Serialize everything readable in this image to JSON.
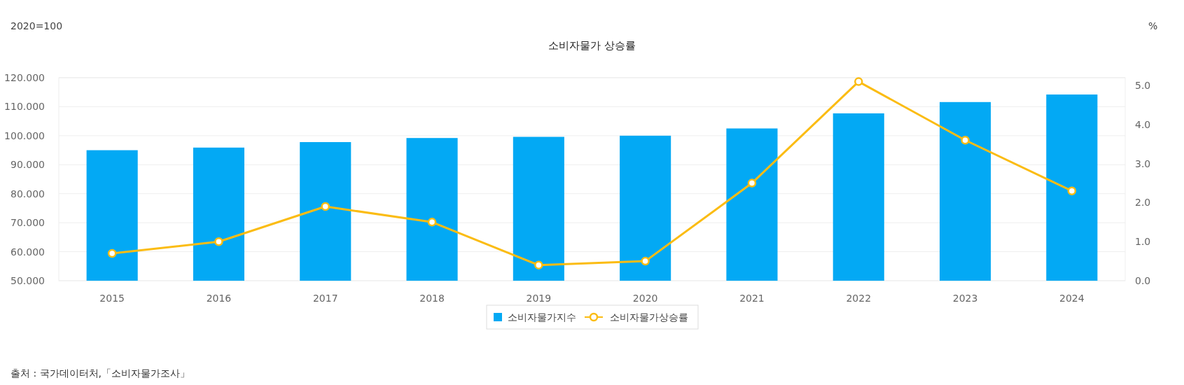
{
  "chart_data": {
    "type": "bar",
    "title": "소비자물가 상승률",
    "ylabel": "2020=100",
    "y2label": "%",
    "categories": [
      "2015",
      "2016",
      "2017",
      "2018",
      "2019",
      "2020",
      "2021",
      "2022",
      "2023",
      "2024"
    ],
    "series": [
      {
        "name": "소비자물가지수",
        "color": "#03a9f4",
        "values": [
          95.0,
          95.9,
          97.8,
          99.2,
          99.6,
          100.0,
          102.5,
          107.7,
          111.6,
          114.2
        ]
      },
      {
        "name": "소비자물가상승률",
        "type": "line",
        "axis": "y2",
        "color": "#fbbc13",
        "marker": "circle",
        "values": [
          0.7,
          1.0,
          1.9,
          1.5,
          0.4,
          0.5,
          2.5,
          5.1,
          3.6,
          2.3
        ]
      }
    ],
    "ylim": [
      50,
      120
    ],
    "yticks": [
      {
        "value": 50,
        "label": "50.000"
      },
      {
        "value": 60,
        "label": "60.000"
      },
      {
        "value": 70,
        "label": "70.000"
      },
      {
        "value": 80,
        "label": "80.000"
      },
      {
        "value": 90,
        "label": "90.000"
      },
      {
        "value": 100,
        "label": "100.000"
      },
      {
        "value": 110,
        "label": "110.000"
      },
      {
        "value": 120,
        "label": "120.000"
      }
    ],
    "y2lim": [
      0,
      5.2
    ],
    "y2ticks": [
      {
        "value": 0,
        "label": "0.0"
      },
      {
        "value": 1,
        "label": "1.0"
      },
      {
        "value": 2,
        "label": "2.0"
      },
      {
        "value": 3,
        "label": "3.0"
      },
      {
        "value": 4,
        "label": "4.0"
      },
      {
        "value": 5,
        "label": "5.0"
      }
    ],
    "grid": "y",
    "legend": "bottom",
    "annotations": [
      "출처 : 국가데이터처,「소비자물가조사」"
    ]
  }
}
